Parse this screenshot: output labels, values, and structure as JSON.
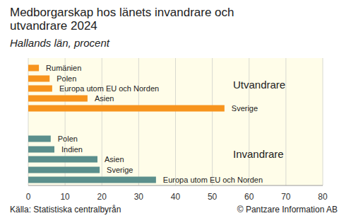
{
  "title": [
    "Medborgarskap hos länets invandrare och",
    "utvandrare 2024"
  ],
  "subtitle": "Hallands län, procent",
  "source": "Källa: Statistiska centralbyrån",
  "credit": "© Pantzare Information AB",
  "chart_data": [
    {
      "type": "bar",
      "orientation": "horizontal",
      "title": "Utvandrare",
      "categories": [
        "Rumänien",
        "Polen",
        "Europa utom EU och Norden",
        "Asien",
        "Sverige"
      ],
      "values": [
        2.9,
        5.8,
        6.5,
        16.1,
        53.3
      ],
      "color": "#f7941d",
      "xlim": [
        0,
        80
      ],
      "xticks": [
        0,
        10,
        20,
        30,
        40,
        50,
        60,
        70,
        80
      ],
      "grid": true,
      "tick_labels": false
    },
    {
      "type": "bar",
      "orientation": "horizontal",
      "title": "Invandrare",
      "categories": [
        "Polen",
        "Indien",
        "Asien",
        "Sverige",
        "Europa utom EU och Norden"
      ],
      "values": [
        6.1,
        7.1,
        18.8,
        19.4,
        34.7
      ],
      "color": "#5b8f8c",
      "xlim": [
        0,
        80
      ],
      "xticks": [
        0,
        10,
        20,
        30,
        40,
        50,
        60,
        70,
        80
      ],
      "grid": true,
      "tick_labels": "x"
    }
  ]
}
